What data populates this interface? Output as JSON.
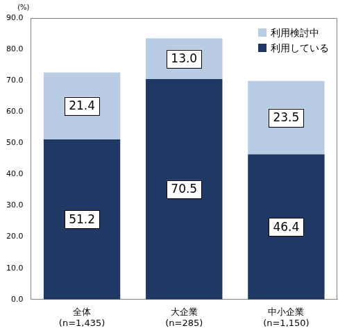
{
  "chart_data": {
    "type": "bar",
    "y_label": "(%)",
    "categories": [
      [
        "全体",
        "(n=1,435)"
      ],
      [
        "大企業",
        "(n=285)"
      ],
      [
        "中小企業",
        "(n=1,150)"
      ]
    ],
    "series": [
      {
        "name": "利用している",
        "color": "#203864",
        "values": [
          51.2,
          70.5,
          46.4
        ]
      },
      {
        "name": "利用検討中",
        "color": "#b8cce4",
        "values": [
          21.4,
          13.0,
          23.5
        ],
        "value_labels": [
          "21.4",
          "13.0",
          "23.5"
        ]
      }
    ],
    "ylim": [
      0,
      90
    ],
    "yticks": [
      {
        "value": 0,
        "label": "0.0"
      },
      {
        "value": 10,
        "label": "10.0"
      },
      {
        "value": 20,
        "label": "20.0"
      },
      {
        "value": 30,
        "label": "30.0"
      },
      {
        "value": 40,
        "label": "40.0"
      },
      {
        "value": 50,
        "label": "50.0"
      },
      {
        "value": 60,
        "label": "60.0"
      },
      {
        "value": 70,
        "label": "70.0"
      },
      {
        "value": 80,
        "label": "80.0"
      },
      {
        "value": 90,
        "label": "90.0"
      }
    ],
    "stacked": true,
    "data_labels": true,
    "legend": "upper right",
    "grid": false
  }
}
